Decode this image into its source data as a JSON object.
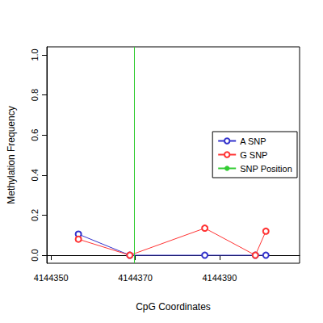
{
  "chart_data": {
    "type": "line",
    "x_label": "CpG Coordinates",
    "y_label": "Methylation Frequency",
    "xlim": [
      4144349,
      4144409
    ],
    "xticks": [
      4144350,
      4144370,
      4144390
    ],
    "ylim": [
      -0.04,
      1.04
    ],
    "yticks": [
      {
        "value": 0,
        "label": "0.0"
      },
      {
        "value": 0.2,
        "label": "0.2"
      },
      {
        "value": 0.4,
        "label": "0.4"
      },
      {
        "value": 0.6,
        "label": "0.6"
      },
      {
        "value": 0.8,
        "label": "0.8"
      },
      {
        "value": 1,
        "label": "1.0"
      }
    ],
    "legend": "right",
    "grid": false,
    "series": [
      {
        "name": "A SNP",
        "color": "#3333cc",
        "marker": "circle",
        "x": [
          4144356.5,
          4144368.7,
          4144386.5,
          4144398.5,
          4144401
        ],
        "values": [
          0.105,
          0.0,
          0.0,
          0.0,
          0.0
        ]
      },
      {
        "name": "G SNP",
        "color": "#ff3333",
        "marker": "circle",
        "x": [
          4144356.5,
          4144368.7,
          4144386.5,
          4144398.5,
          4144401
        ],
        "values": [
          0.08,
          0.0,
          0.135,
          0.0,
          0.12
        ]
      }
    ],
    "vline": {
      "name": "SNP Position",
      "color": "#33cc33",
      "x": 4144369.8
    }
  }
}
